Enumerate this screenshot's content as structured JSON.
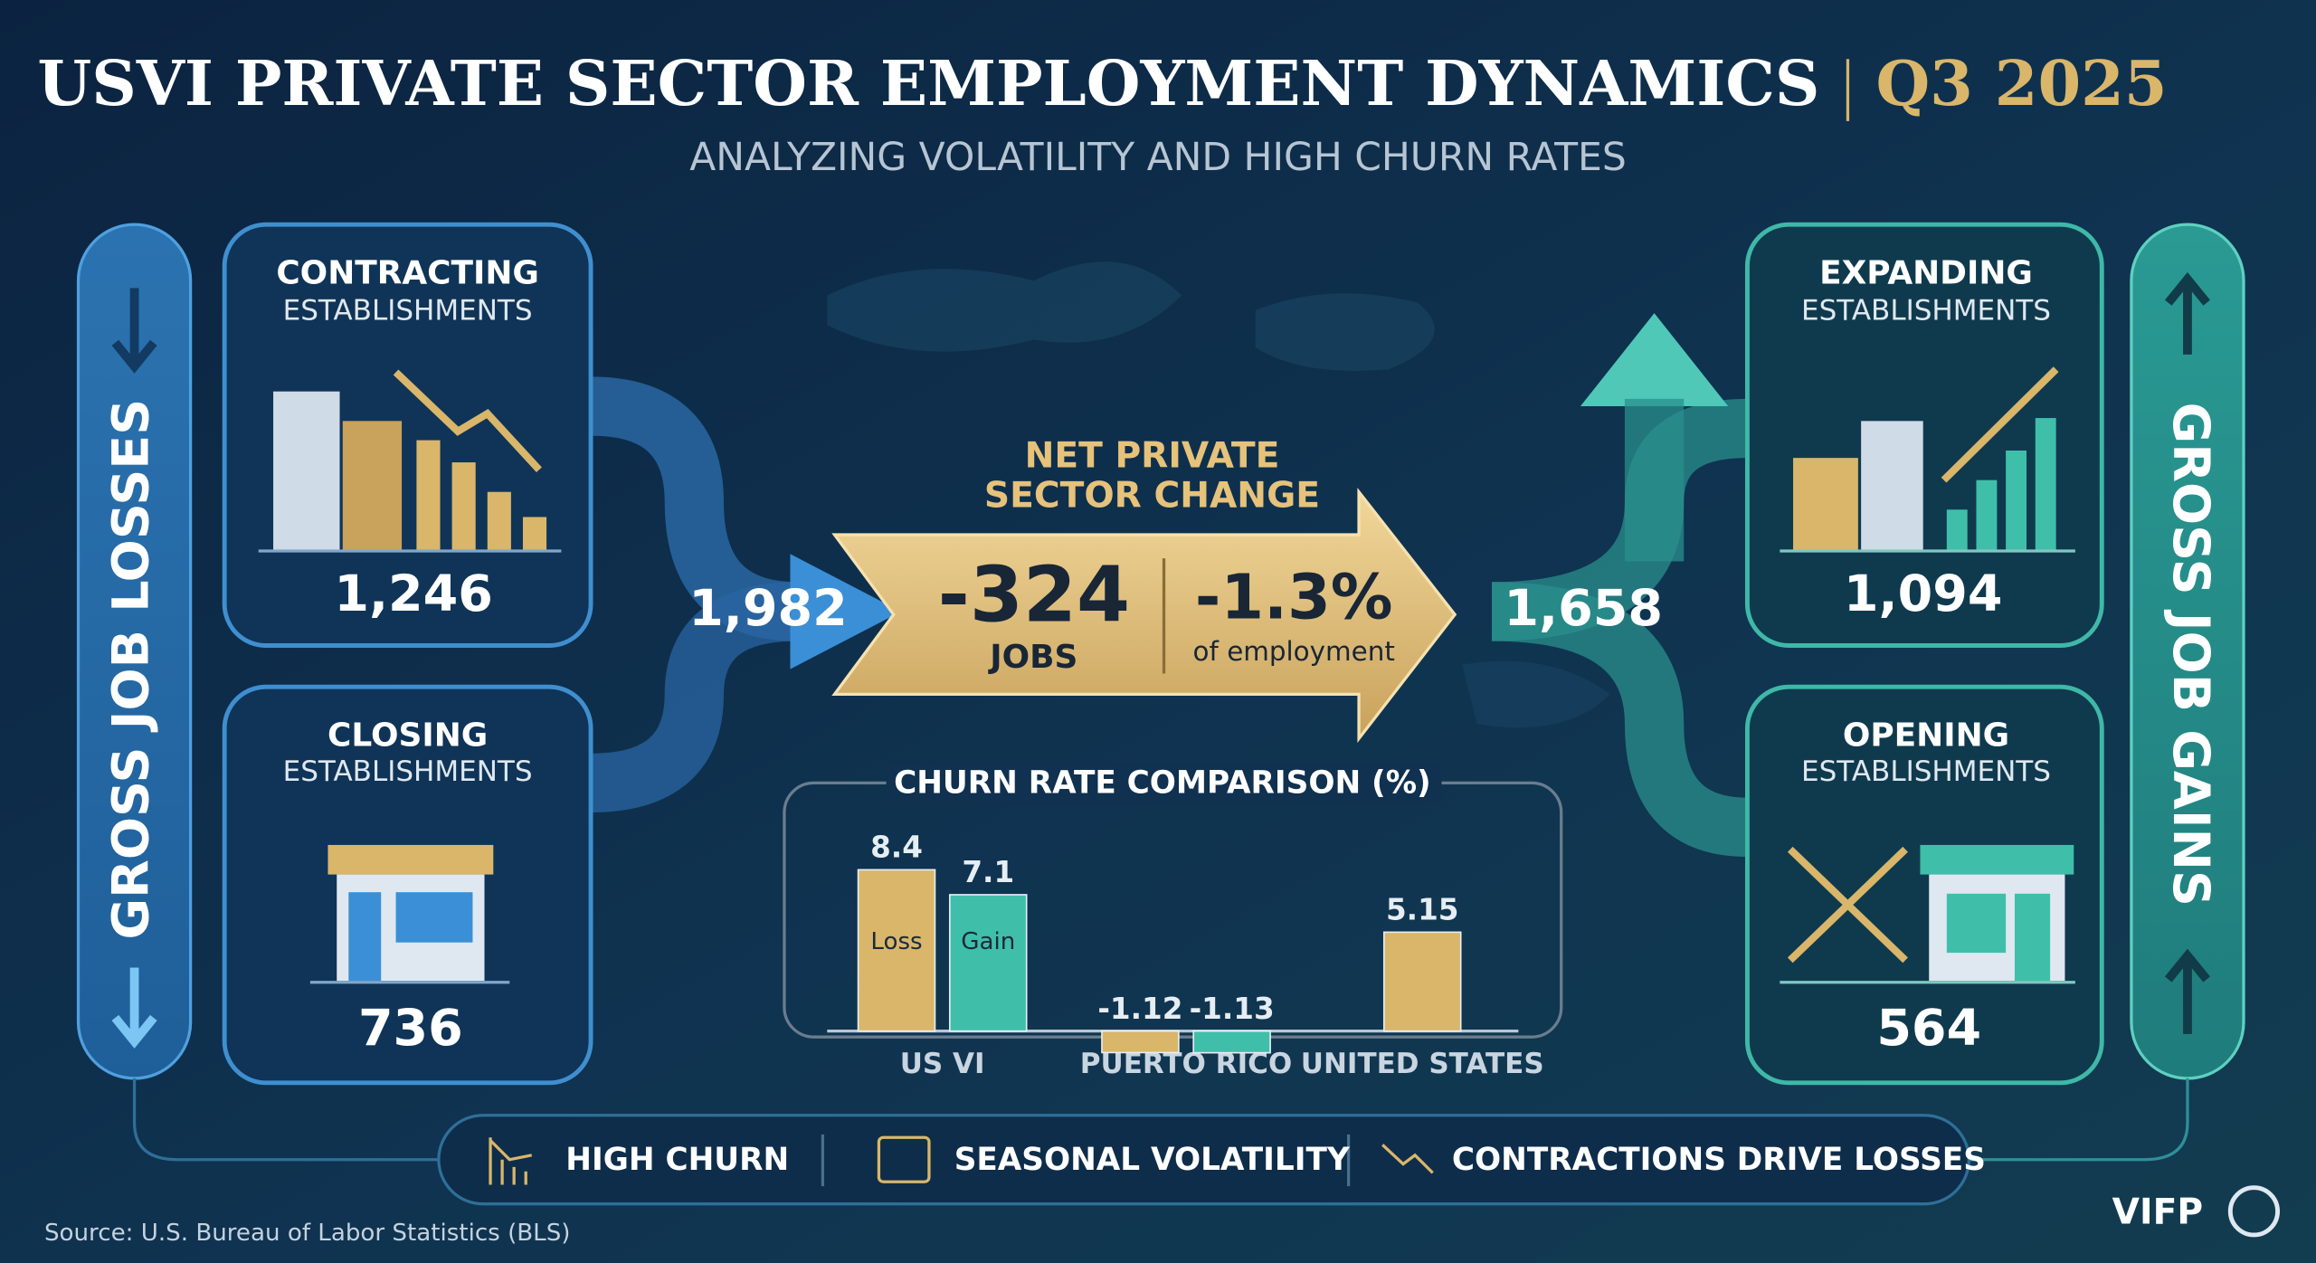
{
  "header": {
    "title": "USVI PRIVATE SECTOR EMPLOYMENT DYNAMICS",
    "period": "Q3 2025",
    "subtitle": "ANALYZING VOLATILITY AND HIGH CHURN RATES"
  },
  "losses": {
    "label": "GROSS JOB LOSSES",
    "total": "1,982",
    "contracting": {
      "title": "CONTRACTING",
      "subtitle": "ESTABLISHMENTS",
      "value": "1,246"
    },
    "closing": {
      "title": "CLOSING",
      "subtitle": "ESTABLISHMENTS",
      "value": "736"
    }
  },
  "gains": {
    "label": "GROSS JOB GAINS",
    "total": "1,658",
    "expanding": {
      "title": "EXPANDING",
      "subtitle": "ESTABLISHMENTS",
      "value": "1,094"
    },
    "opening": {
      "title": "OPENING",
      "subtitle": "ESTABLISHMENTS",
      "value": "564"
    }
  },
  "net_change": {
    "title_line1": "NET PRIVATE",
    "title_line2": "SECTOR CHANGE",
    "jobs": "-324",
    "jobs_label": "JOBS",
    "percent": "-1.3%",
    "percent_label": "of employment"
  },
  "chart_data": {
    "type": "bar",
    "title": "CHURN RATE COMPARISON (%)",
    "categories": [
      "US VI",
      "PUERTO RICO",
      "UNITED STATES"
    ],
    "series": [
      {
        "name": "Loss",
        "color": "#d9b66a",
        "values": [
          8.4,
          -1.12,
          5.15
        ]
      },
      {
        "name": "Gain",
        "color": "#3fbfa9",
        "values": [
          7.1,
          -1.13,
          null
        ]
      }
    ]
  },
  "footer": {
    "items": [
      "HIGH CHURN",
      "SEASONAL VOLATILITY",
      "CONTRACTIONS DRIVE LOSSES"
    ]
  },
  "source": "Source: U.S. Bureau of Labor Statistics (BLS)",
  "logo": "VIFP"
}
